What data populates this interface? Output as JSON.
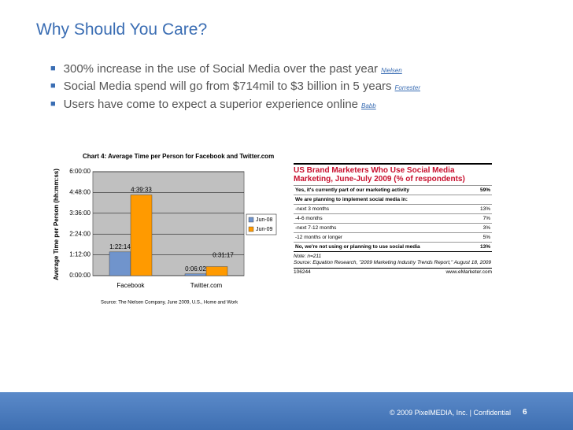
{
  "header": {
    "title": "Why Should You Care?"
  },
  "bullets": [
    {
      "text": "300% increase in the use of Social Media over the past year",
      "source": "Nielsen"
    },
    {
      "text": "Social Media spend will go from $714mil to $3 billion in 5 years",
      "source": "Forrester"
    },
    {
      "text": "Users have come to expect a superior experience online",
      "source": "Babb"
    }
  ],
  "chart_data": {
    "type": "bar",
    "title": "Chart 4: Average Time per Person for Facebook and Twitter.com",
    "y_label": "Average Time per Person (hh:mm:ss)",
    "source": "Source: The Nielsen Company, June 2009, U.S., Home and Work",
    "categories": [
      "Facebook",
      "Twitter.com"
    ],
    "series": [
      {
        "name": "Jun-08",
        "color": "#7094cc",
        "values": [
          4934,
          362
        ],
        "value_labels": [
          "1:22:14",
          "0:06:02"
        ]
      },
      {
        "name": "Jun-09",
        "color": "#ff9a00",
        "values": [
          16773,
          1877
        ],
        "value_labels": [
          "4:39:33",
          "0:31:17"
        ]
      }
    ],
    "ylim": [
      0,
      21600
    ],
    "yticks": [
      {
        "value": 0,
        "label": "0:00:00"
      },
      {
        "value": 4320,
        "label": "1:12:00"
      },
      {
        "value": 8640,
        "label": "2:24:00"
      },
      {
        "value": 12960,
        "label": "3:36:00"
      },
      {
        "value": 17280,
        "label": "4:48:00"
      },
      {
        "value": 21600,
        "label": "6:00:00"
      }
    ],
    "grid": true,
    "legend": "right"
  },
  "table": {
    "title": "US Brand Marketers Who Use Social Media Marketing, June-July 2009 (% of respondents)",
    "rows": [
      [
        "Yes, it's currently part of our marketing activity",
        "59%"
      ],
      [
        "We are planning to implement social media in:",
        ""
      ],
      [
        "-next 3 months",
        "13%"
      ],
      [
        "-4-6 months",
        "7%"
      ],
      [
        "-next 7-12 months",
        "3%"
      ],
      [
        "-12 months or longer",
        "5%"
      ],
      [
        "No, we're not using or planning to use social media",
        "13%"
      ]
    ],
    "note": "Note: n=211",
    "source": "Source: Equation Research, \"2009 Marketing Industry Trends Report,\" August 18, 2009",
    "id": "106244",
    "site": "www.eMarketer.com"
  },
  "footer": {
    "text": "© 2009 PixelMEDIA, Inc. | Confidential",
    "page": "6"
  }
}
